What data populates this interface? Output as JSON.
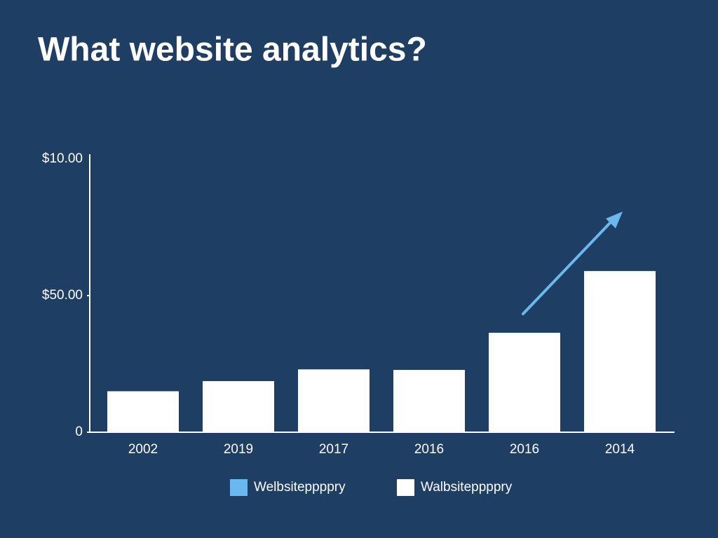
{
  "chart_data": {
    "type": "bar",
    "title": "What website analytics?",
    "categories": [
      "2002",
      "2019",
      "2017",
      "2016",
      "2016",
      "2014"
    ],
    "values": [
      15,
      18.7,
      23,
      22.8,
      36.4,
      59
    ],
    "color": "#ffffff",
    "ylim": [
      0,
      100
    ],
    "yticks": [
      0,
      {
        "value": 50,
        "label": "$50.00"
      }
    ],
    "y_top_label": "$10.00",
    "legend": [
      {
        "name": "Welbsiteppppry",
        "color": "#6ab8ee"
      },
      {
        "name": "Walbsiteppppry",
        "color": "#ffffff"
      }
    ],
    "grid": false
  }
}
